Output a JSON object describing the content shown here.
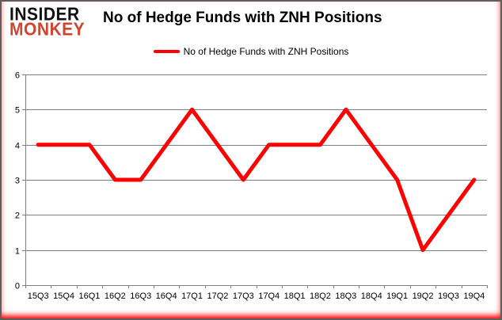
{
  "brand": {
    "line1": "INSIDER",
    "line2": "MONKEY",
    "line1_color": "#111111",
    "line2_color": "#d04532"
  },
  "title": "No of Hedge Funds with ZNH Positions",
  "legend": {
    "label": "No of Hedge Funds with ZNH Positions",
    "color": "#ff0000"
  },
  "chart_data": {
    "type": "line",
    "title": "No of Hedge Funds with ZNH Positions",
    "categories": [
      "15Q3",
      "15Q4",
      "16Q1",
      "16Q2",
      "16Q3",
      "16Q4",
      "17Q1",
      "17Q2",
      "17Q3",
      "17Q4",
      "18Q1",
      "18Q2",
      "18Q3",
      "18Q4",
      "19Q1",
      "19Q2",
      "19Q3",
      "19Q4"
    ],
    "series": [
      {
        "name": "No of Hedge Funds with ZNH Positions",
        "color": "#ff0000",
        "values": [
          4,
          4,
          4,
          3,
          3,
          4,
          5,
          4,
          3,
          4,
          4,
          4,
          5,
          4,
          3,
          1,
          2,
          3
        ]
      }
    ],
    "xlabel": "",
    "ylabel": "",
    "ylim": [
      0,
      6
    ],
    "yticks": [
      0,
      1,
      2,
      3,
      4,
      5,
      6
    ],
    "grid": true,
    "gridline_color": "#808080",
    "axis_color": "#808080",
    "legend_position": "top-center"
  }
}
